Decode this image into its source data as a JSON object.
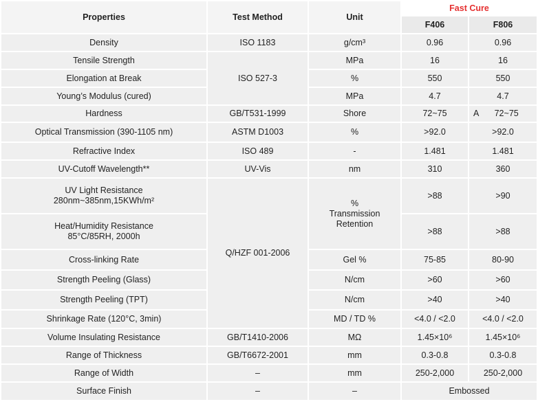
{
  "table": {
    "header": {
      "properties": "Properties",
      "test_method": "Test Method",
      "unit": "Unit",
      "group": "Fast Cure",
      "products": [
        "F406",
        "F806"
      ]
    },
    "rows": [
      [
        "Density",
        "ISO 1183",
        "g/cm³",
        "0.96",
        "0.96"
      ],
      [
        "Tensile Strength",
        "ISO 527-3",
        "MPa",
        "16",
        "16"
      ],
      [
        "Elongation at Break",
        "%",
        "550",
        "550"
      ],
      [
        "Young’s Modulus (cured)",
        "MPa",
        "4.7",
        "4.7"
      ],
      [
        "Hardness",
        "GB/T531-1999",
        "Shore",
        "72~75",
        "A",
        "72~75"
      ],
      [
        "Optical Transmission (390-1105 nm)",
        "ASTM D1003",
        "%",
        ">92.0",
        ">92.0"
      ],
      [
        "Refractive Index",
        "ISO 489",
        "-",
        "1.481",
        "1.481"
      ],
      [
        "UV-Cutoff Wavelength**",
        "UV-Vis",
        "nm",
        "310",
        "360"
      ],
      [
        [
          "UV Light Resistance",
          "280nm~385nm,15KWh/m²"
        ],
        "Q/HZF 001-2006",
        [
          "%",
          "Transmission",
          "Retention"
        ],
        ">88",
        ">90"
      ],
      [
        [
          "Heat/Humidity Resistance",
          "85°C/85RH, 2000h"
        ],
        ">88",
        ">88"
      ],
      [
        "Cross-linking Rate",
        "Gel %",
        "75-85",
        "80-90"
      ],
      [
        "Strength Peeling (Glass)",
        "N/cm",
        ">60",
        ">60"
      ],
      [
        "Strength Peeling (TPT)",
        "N/cm",
        ">40",
        ">40"
      ],
      [
        "Shrinkage Rate (120°C, 3min)",
        "MD / TD %",
        "<4.0 / <2.0",
        "<4.0 / <2.0"
      ],
      [
        "Volume Insulating Resistance",
        "GB/T1410-2006",
        "MΩ",
        "1.45×10⁶",
        "1.45×10⁶"
      ],
      [
        "Range of Thickness",
        "GB/T6672-2001",
        "mm",
        "0.3-0.8",
        "0.3-0.8"
      ],
      [
        "Range of Width",
        "–",
        "mm",
        "250-2,000",
        "250-2,000"
      ],
      [
        "Surface Finish",
        "–",
        "–",
        "Embossed"
      ]
    ]
  }
}
